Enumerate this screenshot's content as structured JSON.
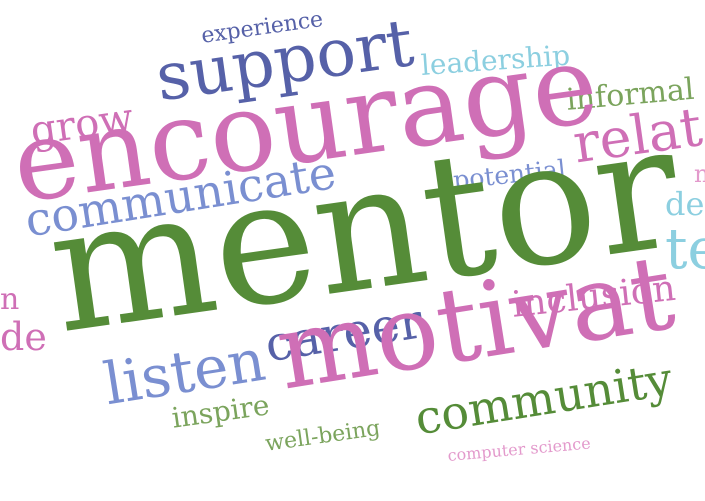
{
  "words": {
    "mentor": "mentor",
    "encourage": "encourage",
    "motivate": "motivat",
    "support": "support",
    "community": "community",
    "career": "career",
    "communicate": "communicate",
    "listen": "listen",
    "relate": "relat",
    "grow": "grow",
    "inclusion": "inclusion",
    "leadership": "leadership",
    "informal": "informal",
    "experience": "experience",
    "potential": "potential",
    "inspire": "inspire",
    "well_being": "well-being",
    "computer_science": "computer science",
    "te": "te",
    "de_right": "de",
    "de_left": "de",
    "n_left": "n",
    "n_right": "n"
  },
  "colors": {
    "pink": "#cf6fb6",
    "green": "#558c38",
    "navy": "#5661a8",
    "blue": "#7a8fd1",
    "cyan": "#8ccfe0",
    "sage": "#7ba45d",
    "light_pink": "#e39acc"
  }
}
